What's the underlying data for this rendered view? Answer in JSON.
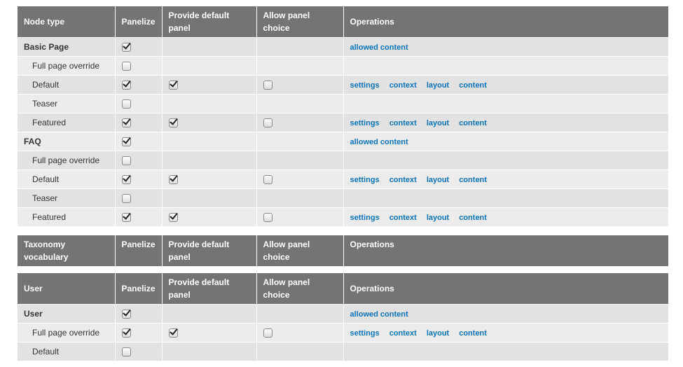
{
  "tables": [
    {
      "headers": [
        "Node type",
        "Panelize",
        "Provide default panel",
        "Allow panel choice",
        "Operations"
      ],
      "rows": [
        {
          "label": "Basic Page",
          "group": true,
          "panelize": true,
          "provide": null,
          "allow": null,
          "ops": [
            "allowed content"
          ]
        },
        {
          "label": "Full page override",
          "group": false,
          "panelize": false,
          "provide": null,
          "allow": null,
          "ops": []
        },
        {
          "label": "Default",
          "group": false,
          "panelize": true,
          "provide": true,
          "allow": false,
          "ops": [
            "settings",
            "context",
            "layout",
            "content"
          ]
        },
        {
          "label": "Teaser",
          "group": false,
          "panelize": false,
          "provide": null,
          "allow": null,
          "ops": []
        },
        {
          "label": "Featured",
          "group": false,
          "panelize": true,
          "provide": true,
          "allow": false,
          "ops": [
            "settings",
            "context",
            "layout",
            "content"
          ]
        },
        {
          "label": "FAQ",
          "group": true,
          "panelize": true,
          "provide": null,
          "allow": null,
          "ops": [
            "allowed content"
          ]
        },
        {
          "label": "Full page override",
          "group": false,
          "panelize": false,
          "provide": null,
          "allow": null,
          "ops": []
        },
        {
          "label": "Default",
          "group": false,
          "panelize": true,
          "provide": true,
          "allow": false,
          "ops": [
            "settings",
            "context",
            "layout",
            "content"
          ]
        },
        {
          "label": "Teaser",
          "group": false,
          "panelize": false,
          "provide": null,
          "allow": null,
          "ops": []
        },
        {
          "label": "Featured",
          "group": false,
          "panelize": true,
          "provide": true,
          "allow": false,
          "ops": [
            "settings",
            "context",
            "layout",
            "content"
          ]
        }
      ]
    },
    {
      "headers": [
        "Taxonomy vocabulary",
        "Panelize",
        "Provide default panel",
        "Allow panel choice",
        "Operations"
      ],
      "rows": []
    },
    {
      "headers": [
        "User",
        "Panelize",
        "Provide default panel",
        "Allow panel choice",
        "Operations"
      ],
      "rows": [
        {
          "label": "User",
          "group": true,
          "panelize": true,
          "provide": null,
          "allow": null,
          "ops": [
            "allowed content"
          ]
        },
        {
          "label": "Full page override",
          "group": false,
          "panelize": true,
          "provide": true,
          "allow": false,
          "ops": [
            "settings",
            "context",
            "layout",
            "content"
          ]
        },
        {
          "label": "Default",
          "group": false,
          "panelize": false,
          "provide": null,
          "allow": null,
          "ops": []
        }
      ]
    }
  ],
  "colors": {
    "header_bg": "#747474",
    "row_dark": "#e2e2e2",
    "row_light": "#ececec",
    "link": "#0b73b9"
  }
}
